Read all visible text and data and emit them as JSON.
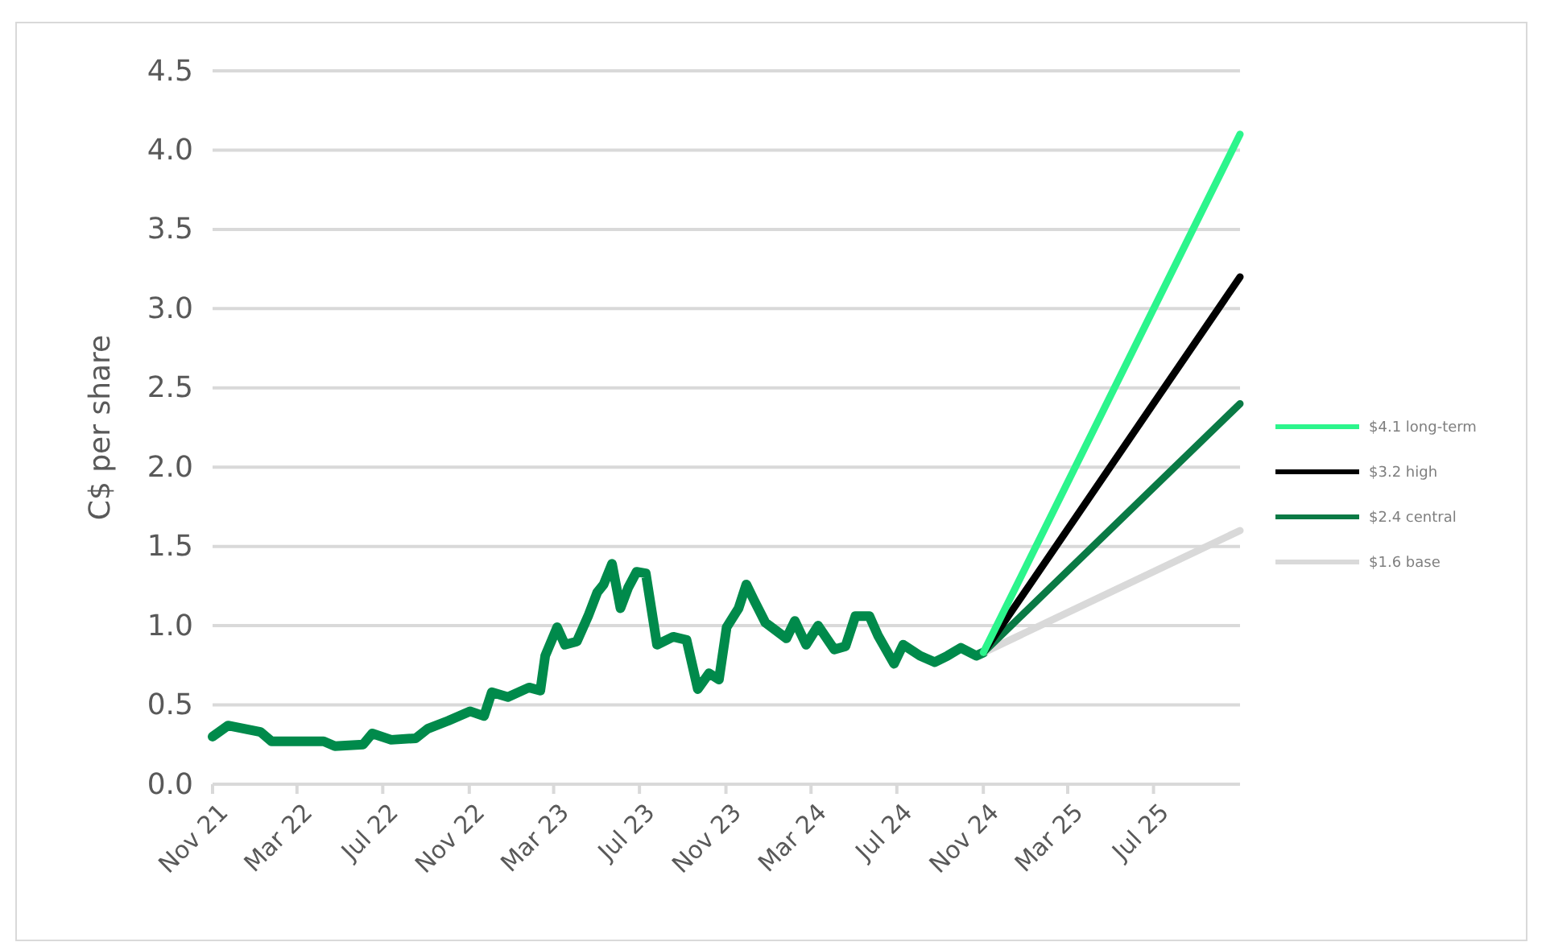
{
  "chart_data": {
    "type": "line",
    "ylabel": "C$ per share",
    "xlim": [
      "2021-11-01",
      "2025-11-01"
    ],
    "ylim": [
      0,
      4.5
    ],
    "yticks": [
      {
        "value": 0,
        "label": "0.0"
      },
      {
        "value": 0.5,
        "label": "0.5"
      },
      {
        "value": 1,
        "label": "1.0"
      },
      {
        "value": 1.5,
        "label": "1.5"
      },
      {
        "value": 2,
        "label": "2.0"
      },
      {
        "value": 2.5,
        "label": "2.5"
      },
      {
        "value": 3,
        "label": "3.0"
      },
      {
        "value": 3.5,
        "label": "3.5"
      },
      {
        "value": 4,
        "label": "4.0"
      },
      {
        "value": 4.5,
        "label": "4.5"
      }
    ],
    "xticks": [
      {
        "value": "2021-11-01",
        "label": "Nov 21"
      },
      {
        "value": "2022-03-01",
        "label": "Mar 22"
      },
      {
        "value": "2022-07-01",
        "label": "Jul 22"
      },
      {
        "value": "2022-11-01",
        "label": "Nov 22"
      },
      {
        "value": "2023-03-01",
        "label": "Mar 23"
      },
      {
        "value": "2023-07-01",
        "label": "Jul 23"
      },
      {
        "value": "2023-11-01",
        "label": "Nov 23"
      },
      {
        "value": "2024-03-01",
        "label": "Mar 24"
      },
      {
        "value": "2024-07-01",
        "label": "Jul 24"
      },
      {
        "value": "2024-11-01",
        "label": "Nov 24"
      },
      {
        "value": "2025-03-01",
        "label": "Mar 25"
      },
      {
        "value": "2025-07-01",
        "label": "Jul 25"
      }
    ],
    "grid": "y",
    "legend": "right",
    "marker": "none",
    "line_style": "solid",
    "series": [
      {
        "color": "#008a4b",
        "x": [
          "2021-11-01",
          "2021-11-23",
          "2022-01-08",
          "2022-01-24",
          "2022-04-08",
          "2022-04-24",
          "2022-06-03",
          "2022-06-16",
          "2022-07-13",
          "2022-08-17",
          "2022-09-03",
          "2022-10-02",
          "2022-11-02",
          "2022-11-22",
          "2022-12-03",
          "2022-12-26",
          "2023-01-25",
          "2023-02-10",
          "2023-02-17",
          "2023-03-06",
          "2023-03-17",
          "2023-04-03",
          "2023-04-19",
          "2023-05-02",
          "2023-05-11",
          "2023-05-23",
          "2023-06-04",
          "2023-06-15",
          "2023-06-27",
          "2023-07-10",
          "2023-07-26",
          "2023-08-18",
          "2023-09-06",
          "2023-09-22",
          "2023-10-08",
          "2023-10-22",
          "2023-11-02",
          "2023-11-19",
          "2023-11-30",
          "2023-12-11",
          "2023-12-27",
          "2024-01-26",
          "2024-02-07",
          "2024-02-23",
          "2024-03-11",
          "2024-04-03",
          "2024-04-19",
          "2024-05-03",
          "2024-05-23",
          "2024-06-04",
          "2024-06-27",
          "2024-07-10",
          "2024-08-03",
          "2024-08-24",
          "2024-09-11",
          "2024-09-30",
          "2024-10-22",
          "2024-11-01"
        ],
        "values": [
          0.3,
          0.37,
          0.33,
          0.27,
          0.27,
          0.24,
          0.25,
          0.32,
          0.28,
          0.29,
          0.35,
          0.4,
          0.46,
          0.43,
          0.58,
          0.55,
          0.61,
          0.59,
          0.81,
          0.99,
          0.88,
          0.9,
          1.06,
          1.21,
          1.26,
          1.39,
          1.11,
          1.24,
          1.34,
          1.33,
          0.88,
          0.93,
          0.91,
          0.6,
          0.7,
          0.66,
          0.99,
          1.11,
          1.26,
          1.16,
          1.02,
          0.92,
          1.03,
          0.88,
          1.0,
          0.85,
          0.87,
          1.06,
          1.06,
          0.94,
          0.76,
          0.88,
          0.81,
          0.77,
          0.81,
          0.86,
          0.81,
          0.83
        ]
      },
      {
        "name": "$1.6 base",
        "color": "#d9d9d9",
        "x": [
          "2024-11-01",
          "2025-11-01"
        ],
        "values": [
          0.83,
          1.6
        ]
      },
      {
        "name": "$2.4 central",
        "color": "#0a7a45",
        "x": [
          "2024-11-01",
          "2025-11-01"
        ],
        "values": [
          0.83,
          2.4
        ]
      },
      {
        "name": "$3.2 high",
        "color": "#000000",
        "x": [
          "2024-11-01",
          "2025-11-01"
        ],
        "values": [
          0.83,
          3.2
        ]
      },
      {
        "name": "$4.1 long-term",
        "color": "#2cf58c",
        "x": [
          "2024-11-01",
          "2025-11-01"
        ],
        "values": [
          0.83,
          4.1
        ]
      }
    ]
  }
}
